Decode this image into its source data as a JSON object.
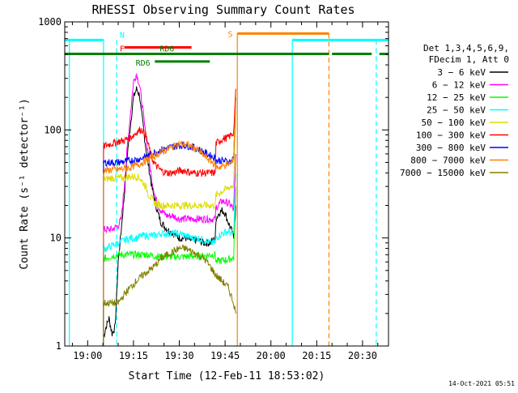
{
  "chart_data": {
    "type": "line",
    "title": "RHESSI Observing Summary Count Rates",
    "xlabel": "Start Time (12-Feb-11 18:53:02)",
    "ylabel": "Count Rate (s⁻¹ detector⁻¹)",
    "y_scale": "log",
    "ylim": [
      1,
      1000
    ],
    "xlim_minutes": [
      -7.5,
      98.5
    ],
    "x_ticks": [
      {
        "label": "19:00",
        "min": 0
      },
      {
        "label": "19:15",
        "min": 15
      },
      {
        "label": "19:30",
        "min": 30
      },
      {
        "label": "19:45",
        "min": 45
      },
      {
        "label": "20:00",
        "min": 60
      },
      {
        "label": "20:15",
        "min": 75
      },
      {
        "label": "20:30",
        "min": 90
      }
    ],
    "y_ticks": [
      {
        "label": "1",
        "v": 1
      },
      {
        "label": "10",
        "v": 10
      },
      {
        "label": "100",
        "v": 100
      },
      {
        "label": "1000",
        "v": 1000
      }
    ],
    "legend": {
      "position": "right",
      "header": [
        "Det 1,3,4,5,6,9,",
        "FDecim 1, Att 0"
      ],
      "entries": [
        {
          "label": "3 − 6 keV",
          "color": "#000000"
        },
        {
          "label": "6 − 12 keV",
          "color": "#ff00ff"
        },
        {
          "label": "12 − 25 keV",
          "color": "#00ff00"
        },
        {
          "label": "25 − 50 keV",
          "color": "#00ffff"
        },
        {
          "label": "50 − 100 keV",
          "color": "#dddd00"
        },
        {
          "label": "100 − 300 keV",
          "color": "#ff0000"
        },
        {
          "label": "300 − 800 keV",
          "color": "#0000ff"
        },
        {
          "label": "800 − 7000 keV",
          "color": "#ff8000"
        },
        {
          "label": "7000 − 15000 keV",
          "color": "#808000"
        }
      ]
    },
    "series": [
      {
        "color": "#000000",
        "x": [
          5.2,
          6,
          7,
          8,
          9,
          10,
          11,
          12,
          13,
          14,
          15,
          16,
          17,
          17.5,
          18,
          19,
          20,
          21,
          22,
          23,
          24,
          26,
          28,
          30,
          32,
          34,
          36,
          38,
          40,
          41.8,
          42,
          43,
          44,
          45,
          46,
          47,
          47.8,
          48.5
        ],
        "y": [
          1.2,
          1.5,
          1.8,
          1.3,
          1.5,
          6,
          12,
          25,
          60,
          110,
          200,
          240,
          210,
          150,
          120,
          70,
          45,
          30,
          22,
          17,
          14,
          12,
          11,
          10,
          10,
          9.5,
          9.5,
          9,
          9,
          10,
          15,
          17,
          18,
          17,
          14,
          12,
          10,
          20
        ]
      },
      {
        "color": "#ff00ff",
        "x": [
          5.2,
          6,
          8,
          10,
          11,
          12,
          13,
          14,
          15,
          16,
          17,
          18,
          19,
          20,
          21,
          22,
          23,
          24,
          26,
          28,
          30,
          32,
          34,
          36,
          38,
          40,
          41.8,
          42,
          44,
          46,
          47,
          47.8,
          48.5
        ],
        "y": [
          12,
          12,
          12,
          13,
          15,
          30,
          70,
          140,
          280,
          330,
          260,
          160,
          90,
          55,
          35,
          25,
          20,
          18,
          16,
          16,
          15,
          15,
          15,
          15,
          15,
          15,
          15,
          19,
          22,
          21,
          20,
          18,
          60
        ]
      },
      {
        "color": "#00ff00",
        "x": [
          5.2,
          6,
          8,
          10,
          12,
          14,
          16,
          18,
          20,
          22,
          24,
          26,
          28,
          30,
          32,
          34,
          36,
          38,
          40,
          41.8,
          42,
          44,
          46,
          47,
          47.8,
          48.5
        ],
        "y": [
          6.5,
          6.5,
          6.8,
          7,
          7,
          7,
          7,
          7,
          7,
          6.8,
          6.7,
          6.7,
          6.7,
          6.7,
          6.7,
          6.8,
          6.8,
          6.8,
          7,
          7,
          6,
          6.2,
          6.3,
          6.5,
          6.5,
          30
        ]
      },
      {
        "color": "#00ffff",
        "x": [
          5.2,
          6,
          8,
          10,
          12,
          14,
          16,
          18,
          20,
          22,
          24,
          26,
          28,
          30,
          32,
          34,
          36,
          38,
          40,
          41.8,
          42,
          44,
          46,
          47,
          47.8,
          48.5
        ],
        "y": [
          8,
          8,
          8.5,
          9,
          9.5,
          10,
          10,
          10.5,
          10.5,
          10.5,
          11,
          11,
          11,
          11,
          10.5,
          10,
          10,
          9.5,
          9,
          9,
          10,
          11,
          11.5,
          11,
          11,
          40
        ]
      },
      {
        "color": "#dddd00",
        "x": [
          5.2,
          6,
          8,
          10,
          12,
          14,
          16,
          17,
          18,
          19,
          20,
          22,
          24,
          26,
          28,
          30,
          32,
          34,
          36,
          38,
          40,
          41.8,
          42,
          44,
          46,
          47,
          47.8,
          48.5
        ],
        "y": [
          35,
          35,
          36,
          36,
          36,
          37,
          37,
          36,
          33,
          30,
          25,
          21,
          20,
          20,
          20,
          20,
          20,
          20,
          20,
          20,
          20,
          20,
          25,
          27,
          29,
          30,
          31,
          150
        ]
      },
      {
        "color": "#ff0000",
        "x": [
          5.2,
          6,
          8,
          10,
          12,
          14,
          16,
          17,
          18,
          19,
          20,
          21,
          22,
          23,
          24,
          26,
          28,
          30,
          32,
          34,
          36,
          38,
          40,
          41.8,
          42,
          44,
          46,
          47,
          47.8,
          48.5
        ],
        "y": [
          70,
          72,
          75,
          78,
          80,
          85,
          95,
          100,
          100,
          90,
          70,
          55,
          48,
          45,
          42,
          40,
          40,
          42,
          42,
          40,
          40,
          40,
          40,
          40,
          75,
          82,
          85,
          90,
          95,
          240
        ]
      },
      {
        "color": "#0000ff",
        "x": [
          5.2,
          6,
          8,
          10,
          12,
          14,
          16,
          18,
          20,
          22,
          24,
          26,
          28,
          30,
          32,
          34,
          36,
          38,
          40,
          41.8,
          42,
          44,
          46,
          47,
          47.8,
          48.5
        ],
        "y": [
          50,
          50,
          50,
          50,
          51,
          52,
          53,
          55,
          58,
          62,
          65,
          68,
          70,
          72,
          72,
          70,
          67,
          62,
          58,
          55,
          52,
          52,
          51,
          51,
          55,
          200
        ]
      },
      {
        "color": "#ff8000",
        "x": [
          5.2,
          6,
          8,
          10,
          12,
          14,
          16,
          18,
          20,
          22,
          24,
          26,
          28,
          30,
          32,
          34,
          36,
          38,
          40,
          41.8,
          42,
          44,
          46,
          47,
          47.8,
          48.5
        ],
        "y": [
          42,
          42,
          43,
          43,
          44,
          45,
          47,
          50,
          54,
          58,
          62,
          66,
          70,
          74,
          74,
          70,
          65,
          58,
          52,
          48,
          45,
          46,
          48,
          50,
          55,
          220
        ]
      },
      {
        "color": "#808000",
        "x": [
          5.2,
          6,
          8,
          10,
          12,
          14,
          16,
          18,
          20,
          22,
          24,
          26,
          28,
          30,
          32,
          34,
          36,
          38,
          40,
          42,
          44,
          46,
          47.8,
          48.5
        ],
        "y": [
          2.5,
          2.5,
          2.5,
          2.5,
          3,
          3.5,
          4,
          4.5,
          5,
          5.5,
          6.5,
          7,
          7.5,
          8,
          8,
          7.5,
          7,
          6.5,
          5.5,
          4.5,
          4,
          3.5,
          2.5,
          2
        ]
      }
    ],
    "annotations": {
      "night": {
        "label": "N",
        "color": "#00ffff",
        "y": 680,
        "segments": [
          [
            -7.5,
            5.2
          ],
          [
            67,
            98.5
          ]
        ],
        "dashed_x": [
          9.5,
          94.5
        ],
        "solid_x": [
          -6,
          5.2,
          67
        ]
      },
      "saa": {
        "label": "S",
        "color": "#ff8000",
        "y": 780,
        "segments": [
          [
            49,
            79
          ]
        ],
        "dashed_x": [
          79
        ],
        "solid_x": [
          49
        ]
      },
      "flare": {
        "label": "F",
        "color": "#ff0000",
        "y": 580,
        "segments": [
          [
            12,
            34
          ]
        ]
      },
      "rd0": {
        "label": "RD0",
        "color": "#008000",
        "y": 505,
        "segments": [
          [
            -7.5,
            44.3
          ],
          [
            44.3,
            79
          ],
          [
            80,
            93
          ],
          [
            95.5,
            98.5
          ]
        ]
      },
      "rd6": {
        "label": "RD6",
        "color": "#008000",
        "y": 430,
        "segments": [
          [
            22,
            40
          ]
        ]
      }
    }
  },
  "footer_timestamp": "14-Oct-2021 05:51"
}
